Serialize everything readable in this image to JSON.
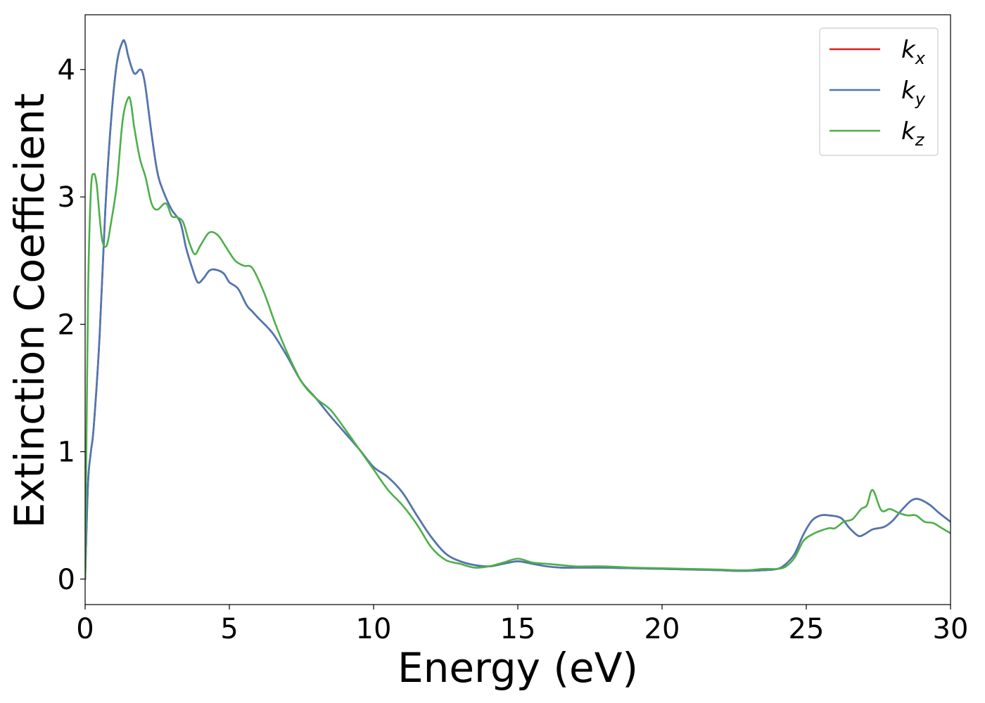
{
  "chart_data": {
    "type": "line",
    "xlabel": "Energy (eV)",
    "ylabel": "Extinction Coefficient",
    "xlim": [
      0,
      30
    ],
    "ylim": [
      -0.2,
      4.43
    ],
    "xticks": [
      0,
      5,
      10,
      15,
      20,
      25,
      30
    ],
    "xtick_labels": [
      "0",
      "5",
      "10",
      "15",
      "20",
      "25",
      "30"
    ],
    "yticks": [
      0,
      1,
      2,
      3,
      4
    ],
    "ytick_labels": [
      "0",
      "1",
      "2",
      "3",
      "4"
    ],
    "grid": false,
    "legend_position": "top-right",
    "series": [
      {
        "name": "k_x",
        "label_main": "k",
        "label_sub": "x",
        "color": "#e41a1c",
        "x": [
          0,
          0.1,
          0.2,
          0.3,
          0.5,
          0.7,
          0.9,
          1.1,
          1.3,
          1.4,
          1.5,
          1.7,
          1.9,
          2.0,
          2.1,
          2.3,
          2.5,
          2.7,
          3.0,
          3.3,
          3.5,
          3.7,
          3.9,
          4.1,
          4.3,
          4.5,
          4.8,
          5.0,
          5.3,
          5.6,
          5.8,
          6.0,
          6.5,
          7.0,
          7.5,
          8.0,
          8.5,
          9.0,
          9.5,
          10.0,
          10.5,
          11.0,
          11.5,
          12.0,
          12.5,
          13.0,
          13.5,
          14.0,
          14.5,
          15.0,
          15.5,
          16.0,
          16.5,
          17.0,
          17.5,
          18.0,
          19.0,
          20.0,
          21.0,
          22.0,
          22.5,
          23.0,
          23.5,
          24.0,
          24.3,
          24.6,
          24.9,
          25.2,
          25.5,
          25.8,
          26.2,
          26.5,
          26.8,
          27.0,
          27.3,
          27.7,
          28.0,
          28.3,
          28.6,
          28.8,
          29.0,
          29.3,
          29.6,
          30.0
        ],
        "y": [
          0.0,
          0.75,
          1.0,
          1.2,
          1.9,
          2.9,
          3.6,
          4.05,
          4.22,
          4.2,
          4.1,
          3.97,
          4.0,
          3.97,
          3.85,
          3.5,
          3.2,
          3.05,
          2.9,
          2.8,
          2.6,
          2.45,
          2.33,
          2.36,
          2.42,
          2.43,
          2.4,
          2.33,
          2.28,
          2.15,
          2.1,
          2.05,
          1.93,
          1.75,
          1.55,
          1.42,
          1.28,
          1.15,
          1.02,
          0.88,
          0.8,
          0.68,
          0.5,
          0.33,
          0.2,
          0.14,
          0.11,
          0.1,
          0.12,
          0.14,
          0.12,
          0.1,
          0.09,
          0.09,
          0.09,
          0.09,
          0.085,
          0.08,
          0.075,
          0.07,
          0.065,
          0.065,
          0.07,
          0.08,
          0.12,
          0.2,
          0.35,
          0.46,
          0.5,
          0.5,
          0.48,
          0.4,
          0.34,
          0.35,
          0.39,
          0.41,
          0.46,
          0.54,
          0.61,
          0.63,
          0.62,
          0.58,
          0.52,
          0.45
        ]
      },
      {
        "name": "k_y",
        "label_main": "k",
        "label_sub": "y",
        "color": "#4a78b5",
        "x": [
          0,
          0.1,
          0.2,
          0.3,
          0.5,
          0.7,
          0.9,
          1.1,
          1.3,
          1.4,
          1.5,
          1.7,
          1.9,
          2.0,
          2.1,
          2.3,
          2.5,
          2.7,
          3.0,
          3.3,
          3.5,
          3.7,
          3.9,
          4.1,
          4.3,
          4.5,
          4.8,
          5.0,
          5.3,
          5.6,
          5.8,
          6.0,
          6.5,
          7.0,
          7.5,
          8.0,
          8.5,
          9.0,
          9.5,
          10.0,
          10.5,
          11.0,
          11.5,
          12.0,
          12.5,
          13.0,
          13.5,
          14.0,
          14.5,
          15.0,
          15.5,
          16.0,
          16.5,
          17.0,
          17.5,
          18.0,
          19.0,
          20.0,
          21.0,
          22.0,
          22.5,
          23.0,
          23.5,
          24.0,
          24.3,
          24.6,
          24.9,
          25.2,
          25.5,
          25.8,
          26.2,
          26.5,
          26.8,
          27.0,
          27.3,
          27.7,
          28.0,
          28.3,
          28.6,
          28.8,
          29.0,
          29.3,
          29.6,
          30.0
        ],
        "y": [
          0.0,
          0.75,
          1.0,
          1.2,
          1.9,
          2.9,
          3.6,
          4.05,
          4.22,
          4.2,
          4.1,
          3.97,
          4.0,
          3.97,
          3.85,
          3.5,
          3.2,
          3.05,
          2.9,
          2.8,
          2.6,
          2.45,
          2.33,
          2.36,
          2.42,
          2.43,
          2.4,
          2.33,
          2.28,
          2.15,
          2.1,
          2.05,
          1.93,
          1.75,
          1.55,
          1.42,
          1.28,
          1.15,
          1.02,
          0.88,
          0.8,
          0.68,
          0.5,
          0.33,
          0.2,
          0.14,
          0.11,
          0.1,
          0.12,
          0.14,
          0.12,
          0.1,
          0.09,
          0.09,
          0.09,
          0.09,
          0.085,
          0.08,
          0.075,
          0.07,
          0.065,
          0.065,
          0.07,
          0.08,
          0.12,
          0.2,
          0.35,
          0.46,
          0.5,
          0.5,
          0.48,
          0.4,
          0.34,
          0.35,
          0.39,
          0.41,
          0.46,
          0.54,
          0.61,
          0.63,
          0.62,
          0.58,
          0.52,
          0.45
        ]
      },
      {
        "name": "k_z",
        "label_main": "k",
        "label_sub": "z",
        "color": "#4daf4a",
        "x": [
          0,
          0.1,
          0.2,
          0.3,
          0.4,
          0.5,
          0.6,
          0.75,
          0.9,
          1.1,
          1.3,
          1.5,
          1.6,
          1.7,
          1.9,
          2.1,
          2.3,
          2.5,
          2.8,
          3.0,
          3.2,
          3.4,
          3.6,
          3.8,
          4.0,
          4.3,
          4.6,
          4.9,
          5.2,
          5.5,
          5.8,
          6.2,
          6.6,
          7.0,
          7.5,
          8.0,
          8.5,
          9.0,
          9.5,
          10.0,
          10.5,
          11.0,
          11.5,
          12.0,
          12.5,
          13.0,
          13.5,
          14.0,
          14.5,
          15.0,
          15.5,
          16.0,
          16.5,
          17.0,
          17.5,
          18.0,
          19.0,
          20.0,
          21.0,
          22.0,
          22.5,
          23.0,
          23.5,
          24.0,
          24.3,
          24.6,
          24.9,
          25.2,
          25.5,
          25.8,
          26.0,
          26.3,
          26.6,
          26.9,
          27.1,
          27.3,
          27.6,
          27.9,
          28.2,
          28.5,
          28.8,
          29.1,
          29.4,
          29.7,
          30.0
        ],
        "y": [
          0.0,
          2.2,
          3.05,
          3.18,
          3.1,
          2.85,
          2.65,
          2.62,
          2.8,
          3.1,
          3.6,
          3.78,
          3.72,
          3.55,
          3.3,
          3.15,
          2.95,
          2.9,
          2.95,
          2.85,
          2.84,
          2.8,
          2.65,
          2.55,
          2.62,
          2.72,
          2.7,
          2.6,
          2.5,
          2.46,
          2.44,
          2.25,
          2.0,
          1.78,
          1.55,
          1.42,
          1.33,
          1.18,
          1.02,
          0.86,
          0.7,
          0.58,
          0.43,
          0.25,
          0.15,
          0.12,
          0.09,
          0.1,
          0.13,
          0.16,
          0.13,
          0.12,
          0.11,
          0.1,
          0.1,
          0.1,
          0.09,
          0.085,
          0.08,
          0.075,
          0.07,
          0.07,
          0.08,
          0.08,
          0.1,
          0.17,
          0.3,
          0.35,
          0.38,
          0.4,
          0.4,
          0.45,
          0.47,
          0.55,
          0.58,
          0.7,
          0.54,
          0.55,
          0.52,
          0.5,
          0.5,
          0.45,
          0.44,
          0.4,
          0.36
        ]
      }
    ]
  }
}
